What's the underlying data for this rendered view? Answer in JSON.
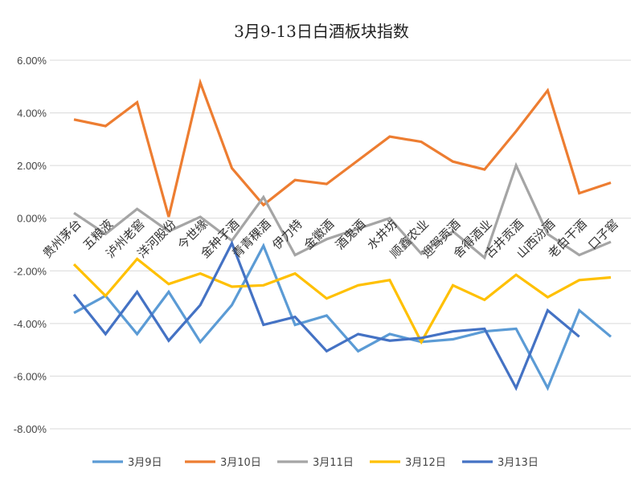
{
  "chart_data": {
    "type": "line",
    "title": "3月9-13日白酒板块指数",
    "xlabel": "",
    "ylabel": "",
    "ylim": [
      -8,
      6
    ],
    "yticks": [
      6,
      4,
      2,
      0,
      -2,
      -4,
      -6,
      -8
    ],
    "ytick_labels": [
      "6.00%",
      "4.00%",
      "2.00%",
      "0.00%",
      "-2.00%",
      "-4.00%",
      "-6.00%",
      "-8.00%"
    ],
    "grid": true,
    "legend_position": "bottom",
    "categories": [
      "贵州茅台",
      "五粮液",
      "泸州老窖",
      "洋河股份",
      "今世缘",
      "金种子酒",
      "青青稞酒",
      "伊力特",
      "金徽酒",
      "酒鬼酒",
      "水井坊",
      "顺鑫农业",
      "迎驾贡酒",
      "舍得酒业",
      "古井贡酒",
      "山西汾酒",
      "老白干酒",
      "口子窖"
    ],
    "series": [
      {
        "name": "3月9日",
        "color": "#5B9BD5",
        "values": [
          -3.6,
          -2.95,
          -4.4,
          -2.8,
          -4.7,
          -3.3,
          -1.05,
          -4.05,
          -3.7,
          -5.05,
          -4.4,
          -4.7,
          -4.6,
          -4.3,
          -4.2,
          -6.45,
          -3.5,
          -4.5
        ]
      },
      {
        "name": "3月10日",
        "color": "#ED7D31",
        "values": [
          3.75,
          3.5,
          4.4,
          0.05,
          5.15,
          1.9,
          0.5,
          1.45,
          1.3,
          2.2,
          3.1,
          2.9,
          2.15,
          1.85,
          3.3,
          4.85,
          0.95,
          1.35
        ]
      },
      {
        "name": "3月11日",
        "color": "#A5A5A5",
        "values": [
          0.2,
          -0.6,
          0.35,
          -0.5,
          0.05,
          -0.85,
          0.8,
          -1.4,
          -0.8,
          -0.4,
          0.0,
          -1.35,
          -0.5,
          -1.5,
          2.0,
          -0.6,
          -1.4,
          -0.9
        ]
      },
      {
        "name": "3月12日",
        "color": "#FFC000",
        "values": [
          -1.75,
          -2.95,
          -1.55,
          -2.5,
          -2.1,
          -2.6,
          -2.55,
          -2.1,
          -3.05,
          -2.55,
          -2.35,
          -4.7,
          -2.55,
          -3.1,
          -2.15,
          -3.0,
          -2.35,
          -2.25
        ]
      },
      {
        "name": "3月13日",
        "color": "#4472C4",
        "values": [
          -2.9,
          -4.4,
          -2.8,
          -4.65,
          -3.3,
          -0.95,
          -4.05,
          -3.75,
          -5.05,
          -4.4,
          -4.65,
          -4.55,
          -4.3,
          -4.2,
          -6.45,
          -3.5,
          -4.5,
          null
        ]
      }
    ]
  }
}
